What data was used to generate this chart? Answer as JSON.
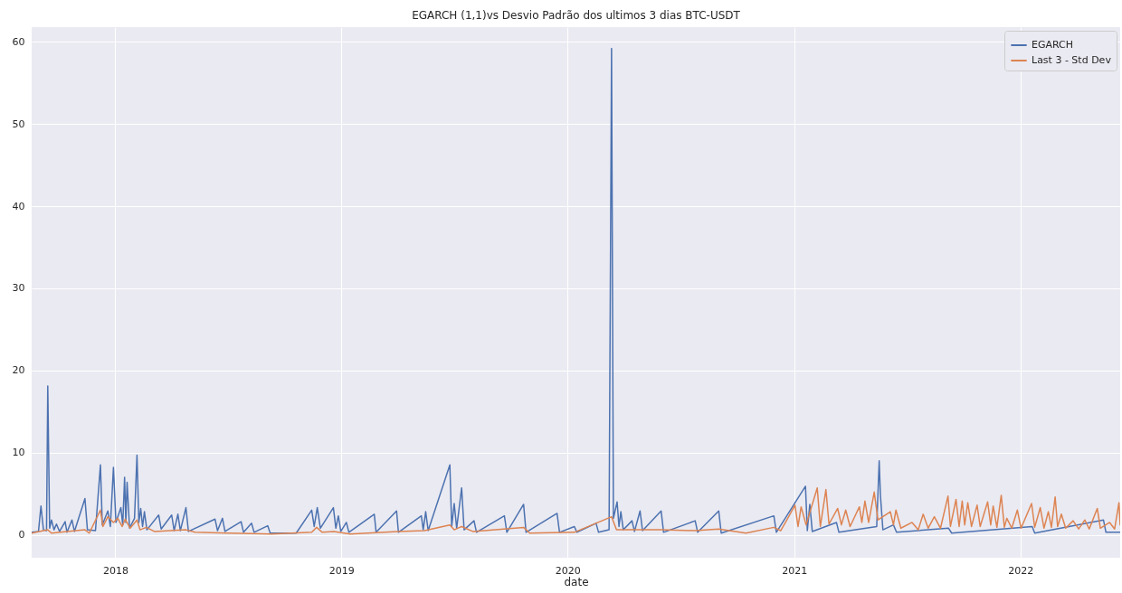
{
  "chart_data": {
    "type": "line",
    "title": "EGARCH (1,1)vs Desvio Padrão dos ultimos 3 dias BTC-USDT",
    "xlabel": "date",
    "xlim": [
      "2017-08-19",
      "2022-06-11"
    ],
    "xticks": [
      "2018",
      "2019",
      "2020",
      "2021",
      "2022"
    ],
    "ylim": [
      -2.8,
      61.8
    ],
    "yticks": [
      0,
      10,
      20,
      30,
      40,
      50,
      60
    ],
    "grid": true,
    "legend": "top right",
    "line_style": "solid",
    "marker": "none",
    "series": [
      {
        "name": "EGARCH",
        "color": "#4c72b0",
        "x": [
          "2017-08-19",
          "2017-08-30",
          "2017-09-03",
          "2017-09-07",
          "2017-09-12",
          "2017-09-14",
          "2017-09-17",
          "2017-09-20",
          "2017-09-24",
          "2017-09-28",
          "2017-10-03",
          "2017-10-12",
          "2017-10-15",
          "2017-10-23",
          "2017-10-27",
          "2017-11-13",
          "2017-11-17",
          "2017-11-30",
          "2017-12-08",
          "2017-12-11",
          "2017-12-20",
          "2017-12-24",
          "2017-12-29",
          "2018-01-02",
          "2018-01-10",
          "2018-01-13",
          "2018-01-16",
          "2018-01-18",
          "2018-01-20",
          "2018-01-24",
          "2018-02-01",
          "2018-02-05",
          "2018-02-08",
          "2018-02-11",
          "2018-02-14",
          "2018-02-17",
          "2018-02-21",
          "2018-03-12",
          "2018-03-16",
          "2018-04-02",
          "2018-04-06",
          "2018-04-12",
          "2018-04-16",
          "2018-04-25",
          "2018-04-29",
          "2018-06-11",
          "2018-06-15",
          "2018-06-23",
          "2018-06-27",
          "2018-07-23",
          "2018-07-27",
          "2018-08-09",
          "2018-08-13",
          "2018-09-04",
          "2018-09-08",
          "2018-10-20",
          "2018-11-14",
          "2018-11-18",
          "2018-11-23",
          "2018-11-28",
          "2018-12-19",
          "2018-12-23",
          "2018-12-27",
          "2018-12-31",
          "2019-01-09",
          "2019-01-13",
          "2019-02-23",
          "2019-02-26",
          "2019-03-31",
          "2019-04-03",
          "2019-05-10",
          "2019-05-13",
          "2019-05-17",
          "2019-05-21",
          "2019-06-25",
          "2019-06-28",
          "2019-07-02",
          "2019-07-06",
          "2019-07-14",
          "2019-07-18",
          "2019-08-03",
          "2019-08-07",
          "2019-09-21",
          "2019-09-25",
          "2019-10-22",
          "2019-10-26",
          "2019-12-15",
          "2019-12-19",
          "2020-01-12",
          "2020-01-16",
          "2020-02-16",
          "2020-02-20",
          "2020-03-08",
          "2020-03-12",
          "2020-03-15",
          "2020-03-21",
          "2020-03-24",
          "2020-03-27",
          "2020-03-31",
          "2020-04-14",
          "2020-04-18",
          "2020-04-27",
          "2020-05-01",
          "2020-05-31",
          "2020-06-04",
          "2020-07-25",
          "2020-07-29",
          "2020-09-01",
          "2020-09-05",
          "2020-11-29",
          "2020-12-03",
          "2021-01-19",
          "2021-01-22",
          "2021-01-26",
          "2021-01-30",
          "2021-03-10",
          "2021-03-14",
          "2021-05-14",
          "2021-05-18",
          "2021-05-20",
          "2021-05-24",
          "2021-06-10",
          "2021-06-15",
          "2021-09-07",
          "2021-09-12",
          "2022-01-20",
          "2022-01-24",
          "2022-05-15",
          "2022-05-19",
          "2022-06-11"
        ],
        "values": [
          0.3,
          0.4,
          3.5,
          0.6,
          0.5,
          18.1,
          0.8,
          1.8,
          0.6,
          1.3,
          0.4,
          1.6,
          0.3,
          1.8,
          0.4,
          4.4,
          0.6,
          0.5,
          8.5,
          1.2,
          2.9,
          1.0,
          8.2,
          1.5,
          3.3,
          1.2,
          7.0,
          1.5,
          6.4,
          0.8,
          2.0,
          9.7,
          1.5,
          3.2,
          1.0,
          2.8,
          0.6,
          2.4,
          0.7,
          2.4,
          0.5,
          2.5,
          0.5,
          3.3,
          0.4,
          1.9,
          0.5,
          2.0,
          0.4,
          1.6,
          0.3,
          1.4,
          0.3,
          1.1,
          0.2,
          0.2,
          3.0,
          1.0,
          3.3,
          0.8,
          3.3,
          0.8,
          2.3,
          0.4,
          1.5,
          0.3,
          2.5,
          0.3,
          2.9,
          0.3,
          2.3,
          0.6,
          2.8,
          0.5,
          8.5,
          1.0,
          3.8,
          0.8,
          5.7,
          0.6,
          1.7,
          0.3,
          2.3,
          0.3,
          3.7,
          0.3,
          2.6,
          0.3,
          1.0,
          0.3,
          1.4,
          0.3,
          0.6,
          59.2,
          2.0,
          4.0,
          1.0,
          2.8,
          0.6,
          1.7,
          0.4,
          2.9,
          0.5,
          2.9,
          0.3,
          1.7,
          0.3,
          2.9,
          0.2,
          2.3,
          0.3,
          5.9,
          0.5,
          3.7,
          0.4,
          1.5,
          0.3,
          1.0,
          9.0,
          4.8,
          0.6,
          1.2,
          0.3,
          0.8,
          0.2,
          1.0,
          0.2,
          1.8,
          0.3,
          0.3
        ]
      },
      {
        "name": "Last 3 - Std Dev",
        "color": "#dd8452",
        "x": [
          "2017-08-19",
          "2017-09-14",
          "2017-09-20",
          "2017-11-13",
          "2017-11-20",
          "2017-12-08",
          "2017-12-12",
          "2017-12-20",
          "2017-12-29",
          "2018-01-05",
          "2018-01-12",
          "2018-01-17",
          "2018-01-25",
          "2018-02-05",
          "2018-02-10",
          "2018-02-20",
          "2018-03-05",
          "2018-04-25",
          "2018-05-10",
          "2018-07-01",
          "2018-09-10",
          "2018-11-14",
          "2018-11-22",
          "2018-12-01",
          "2018-12-20",
          "2019-01-15",
          "2019-04-02",
          "2019-05-15",
          "2019-06-25",
          "2019-07-02",
          "2019-07-14",
          "2019-08-01",
          "2019-10-22",
          "2019-11-01",
          "2020-01-12",
          "2020-03-12",
          "2020-03-20",
          "2020-05-31",
          "2020-07-25",
          "2020-09-01",
          "2020-10-15",
          "2020-11-29",
          "2020-12-10",
          "2020-12-20",
          "2021-01-02",
          "2021-01-07",
          "2021-01-12",
          "2021-01-20",
          "2021-02-07",
          "2021-02-12",
          "2021-02-21",
          "2021-02-26",
          "2021-03-12",
          "2021-03-18",
          "2021-03-25",
          "2021-04-01",
          "2021-04-16",
          "2021-04-20",
          "2021-04-25",
          "2021-05-01",
          "2021-05-10",
          "2021-05-16",
          "2021-06-05",
          "2021-06-10",
          "2021-06-14",
          "2021-06-22",
          "2021-07-10",
          "2021-07-20",
          "2021-07-28",
          "2021-08-05",
          "2021-08-15",
          "2021-08-25",
          "2021-09-06",
          "2021-09-10",
          "2021-09-19",
          "2021-09-24",
          "2021-09-29",
          "2021-10-03",
          "2021-10-08",
          "2021-10-14",
          "2021-10-23",
          "2021-10-28",
          "2021-11-09",
          "2021-11-14",
          "2021-11-18",
          "2021-11-24",
          "2021-12-01",
          "2021-12-06",
          "2021-12-10",
          "2021-12-18",
          "2021-12-27",
          "2022-01-02",
          "2022-01-19",
          "2022-01-24",
          "2022-02-02",
          "2022-02-08",
          "2022-02-15",
          "2022-02-20",
          "2022-02-26",
          "2022-03-02",
          "2022-03-08",
          "2022-03-15",
          "2022-03-27",
          "2022-04-05",
          "2022-04-15",
          "2022-04-22",
          "2022-05-05",
          "2022-05-10",
          "2022-05-25",
          "2022-06-02",
          "2022-06-09",
          "2022-06-11"
        ],
        "values": [
          0.2,
          0.6,
          0.2,
          0.6,
          0.2,
          3.0,
          1.0,
          2.2,
          1.5,
          2.0,
          1.0,
          1.9,
          0.8,
          1.8,
          0.6,
          0.9,
          0.4,
          0.6,
          0.3,
          0.2,
          0.1,
          0.3,
          0.9,
          0.3,
          0.4,
          0.1,
          0.4,
          0.5,
          1.2,
          0.6,
          1.0,
          0.4,
          0.9,
          0.2,
          0.3,
          2.2,
          0.6,
          0.6,
          0.5,
          0.7,
          0.2,
          0.9,
          0.5,
          1.8,
          3.6,
          1.0,
          3.4,
          1.2,
          5.7,
          1.0,
          5.5,
          1.3,
          3.2,
          1.2,
          3.0,
          1.0,
          3.4,
          1.5,
          4.1,
          1.5,
          5.2,
          1.8,
          2.8,
          1.2,
          3.0,
          0.8,
          1.5,
          0.6,
          2.5,
          0.8,
          2.2,
          0.8,
          4.7,
          1.0,
          4.3,
          1.0,
          4.1,
          1.2,
          3.9,
          1.0,
          3.6,
          1.0,
          4.0,
          1.2,
          3.5,
          0.9,
          4.8,
          0.9,
          2.0,
          0.8,
          3.0,
          0.8,
          3.8,
          0.9,
          3.3,
          0.8,
          2.8,
          0.9,
          4.6,
          1.0,
          2.5,
          0.8,
          1.7,
          0.7,
          1.8,
          0.7,
          3.2,
          0.8,
          1.5,
          0.7,
          3.9,
          1.2
        ]
      }
    ]
  }
}
